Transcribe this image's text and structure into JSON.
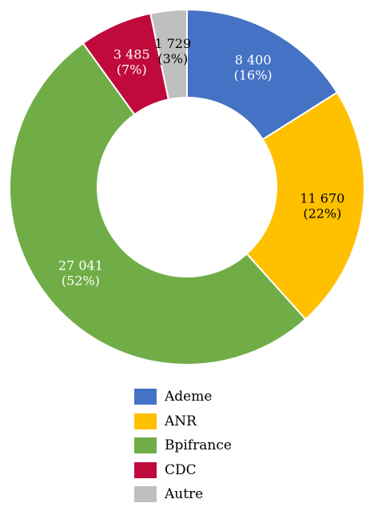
{
  "chart_data": {
    "type": "pie",
    "donut": true,
    "categories": [
      "Ademe",
      "ANR",
      "Bpifrance",
      "CDC",
      "Autre"
    ],
    "values": [
      8400,
      11670,
      27041,
      3485,
      1729
    ],
    "value_labels": [
      "8 400",
      "11 670",
      "27 041",
      "3 485",
      "1 729"
    ],
    "percent_labels": [
      "(16%)",
      "(22%)",
      "(52%)",
      "(7%)",
      "(3%)"
    ],
    "colors": [
      "#4472C4",
      "#FFC000",
      "#70AD47",
      "#C00A3C",
      "#BFBFBF"
    ],
    "label_colors": [
      "#ffffff",
      "#000000",
      "#ffffff",
      "#ffffff",
      "#000000"
    ],
    "legend_position": "bottom"
  }
}
